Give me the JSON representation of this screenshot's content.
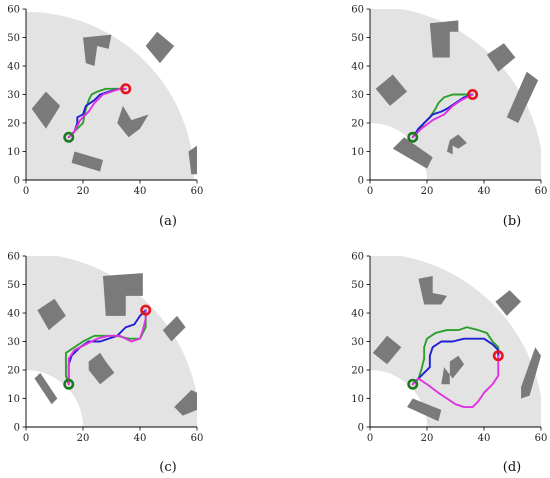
{
  "chart_data": [
    {
      "label": "(a)",
      "type": "line",
      "xlim": [
        0,
        60
      ],
      "ylim": [
        0,
        60
      ],
      "xticks": [
        0,
        20,
        40,
        60
      ],
      "yticks": [
        0,
        10,
        20,
        30,
        40,
        50,
        60
      ],
      "free_region": {
        "center": [
          0,
          0
        ],
        "r_inner": 0,
        "r_outer": 59
      },
      "obstacles": [
        [
          [
            20,
            50
          ],
          [
            30,
            51
          ],
          [
            29,
            46
          ],
          [
            25,
            47
          ],
          [
            24,
            40
          ],
          [
            21,
            41
          ]
        ],
        [
          [
            42,
            47
          ],
          [
            46,
            52
          ],
          [
            52,
            47
          ],
          [
            47,
            41
          ]
        ],
        [
          [
            2,
            25
          ],
          [
            7,
            31
          ],
          [
            12,
            26
          ],
          [
            7,
            18
          ]
        ],
        [
          [
            34,
            26
          ],
          [
            37,
            21
          ],
          [
            43,
            23
          ],
          [
            40,
            18
          ],
          [
            36,
            15
          ],
          [
            32,
            20
          ]
        ],
        [
          [
            16,
            6
          ],
          [
            26,
            3
          ],
          [
            27,
            7
          ],
          [
            17,
            10
          ]
        ],
        [
          [
            57,
            10
          ],
          [
            60,
            12
          ],
          [
            60,
            2
          ],
          [
            58,
            2
          ]
        ]
      ],
      "start": [
        15,
        15
      ],
      "goal": [
        35,
        32
      ],
      "series": [
        {
          "color": "#2ca02c",
          "points": [
            [
              15,
              15
            ],
            [
              18,
              18
            ],
            [
              20,
              20
            ],
            [
              21,
              25
            ],
            [
              22,
              28
            ],
            [
              23,
              30
            ],
            [
              25,
              31
            ],
            [
              28,
              32
            ],
            [
              32,
              32
            ],
            [
              35,
              32
            ]
          ]
        },
        {
          "color": "#1f1fd6",
          "points": [
            [
              15,
              15
            ],
            [
              17,
              17
            ],
            [
              18,
              20
            ],
            [
              18,
              22
            ],
            [
              20,
              23
            ],
            [
              21,
              26
            ],
            [
              24,
              28
            ],
            [
              26,
              30
            ],
            [
              29,
              31
            ],
            [
              33,
              32
            ],
            [
              35,
              32
            ]
          ]
        },
        {
          "color": "#e032e0",
          "points": [
            [
              15,
              15
            ],
            [
              17,
              17
            ],
            [
              19,
              21
            ],
            [
              22,
              24
            ],
            [
              24,
              27
            ],
            [
              27,
              30
            ],
            [
              30,
              31
            ],
            [
              33,
              32
            ],
            [
              35,
              32
            ]
          ]
        }
      ]
    },
    {
      "label": "(b)",
      "type": "line",
      "xlim": [
        0,
        60
      ],
      "ylim": [
        0,
        60
      ],
      "xticks": [
        0,
        20,
        40,
        60
      ],
      "yticks": [
        0,
        10,
        20,
        30,
        40,
        50,
        60
      ],
      "free_region": {
        "center": [
          0,
          0
        ],
        "r_inner": 20,
        "r_outer": 61
      },
      "obstacles": [
        [
          [
            21,
            55
          ],
          [
            31,
            56
          ],
          [
            31,
            52
          ],
          [
            28,
            52
          ],
          [
            28,
            43
          ],
          [
            22,
            43
          ]
        ],
        [
          [
            41,
            44
          ],
          [
            45,
            38
          ],
          [
            51,
            43
          ],
          [
            47,
            48
          ]
        ],
        [
          [
            2,
            32
          ],
          [
            8,
            37
          ],
          [
            13,
            31
          ],
          [
            7,
            26
          ]
        ],
        [
          [
            48,
            22
          ],
          [
            55,
            38
          ],
          [
            59,
            35
          ],
          [
            52,
            20
          ]
        ],
        [
          [
            28,
            14
          ],
          [
            31,
            16
          ],
          [
            34,
            13
          ],
          [
            31,
            11
          ],
          [
            29,
            12
          ],
          [
            29,
            9
          ],
          [
            27,
            10
          ]
        ],
        [
          [
            8,
            11
          ],
          [
            12,
            15
          ],
          [
            22,
            8
          ],
          [
            20,
            4
          ]
        ]
      ],
      "start": [
        15,
        15
      ],
      "goal": [
        36,
        30
      ],
      "series": [
        {
          "color": "#2ca02c",
          "points": [
            [
              15,
              15
            ],
            [
              17,
              17
            ],
            [
              19,
              20
            ],
            [
              21,
              22
            ],
            [
              23,
              25
            ],
            [
              24,
              27
            ],
            [
              26,
              29
            ],
            [
              29,
              30
            ],
            [
              33,
              30
            ],
            [
              36,
              30
            ]
          ]
        },
        {
          "color": "#1f1fd6",
          "points": [
            [
              15,
              15
            ],
            [
              17,
              18
            ],
            [
              20,
              21
            ],
            [
              22,
              23
            ],
            [
              25,
              24
            ],
            [
              27,
              25
            ],
            [
              30,
              27
            ],
            [
              33,
              29
            ],
            [
              36,
              30
            ]
          ]
        },
        {
          "color": "#e032e0",
          "points": [
            [
              15,
              15
            ],
            [
              18,
              18
            ],
            [
              22,
              21
            ],
            [
              26,
              23
            ],
            [
              29,
              26
            ],
            [
              32,
              28
            ],
            [
              36,
              30
            ]
          ]
        }
      ]
    },
    {
      "label": "(c)",
      "type": "line",
      "xlim": [
        0,
        60
      ],
      "ylim": [
        0,
        60
      ],
      "xticks": [
        0,
        20,
        40,
        60
      ],
      "yticks": [
        0,
        10,
        20,
        30,
        40,
        50,
        60
      ],
      "free_region": {
        "center": [
          0,
          0
        ],
        "r_inner": 20,
        "r_outer": 61
      },
      "obstacles": [
        [
          [
            27,
            53
          ],
          [
            41,
            54
          ],
          [
            41,
            46
          ],
          [
            35,
            46
          ],
          [
            35,
            39
          ],
          [
            28,
            39
          ]
        ],
        [
          [
            4,
            41
          ],
          [
            10,
            45
          ],
          [
            14,
            39
          ],
          [
            8,
            34
          ]
        ],
        [
          [
            48,
            34
          ],
          [
            51,
            30
          ],
          [
            56,
            35
          ],
          [
            53,
            39
          ]
        ],
        [
          [
            22,
            20
          ],
          [
            26,
            15
          ],
          [
            31,
            19
          ],
          [
            28,
            23
          ],
          [
            26,
            26
          ],
          [
            22,
            23
          ]
        ],
        [
          [
            3,
            17
          ],
          [
            5,
            19
          ],
          [
            11,
            10
          ],
          [
            9,
            8
          ]
        ],
        [
          [
            52,
            7
          ],
          [
            58,
            13
          ],
          [
            60,
            12
          ],
          [
            60,
            6
          ],
          [
            55,
            4
          ]
        ]
      ],
      "start": [
        15,
        15
      ],
      "goal": [
        42,
        41
      ],
      "series": [
        {
          "color": "#2ca02c",
          "points": [
            [
              15,
              15
            ],
            [
              14,
              18
            ],
            [
              14,
              22
            ],
            [
              14,
              26
            ],
            [
              17,
              28
            ],
            [
              20,
              30
            ],
            [
              24,
              32
            ],
            [
              28,
              32
            ],
            [
              32,
              32
            ],
            [
              36,
              31
            ],
            [
              40,
              31
            ],
            [
              42,
              35
            ],
            [
              42,
              41
            ]
          ]
        },
        {
          "color": "#1f1fd6",
          "points": [
            [
              15,
              15
            ],
            [
              15,
              18
            ],
            [
              15,
              22
            ],
            [
              16,
              25
            ],
            [
              19,
              28
            ],
            [
              22,
              30
            ],
            [
              26,
              30
            ],
            [
              29,
              31
            ],
            [
              32,
              32
            ],
            [
              35,
              35
            ],
            [
              38,
              36
            ],
            [
              40,
              39
            ],
            [
              42,
              41
            ]
          ]
        },
        {
          "color": "#e032e0",
          "points": [
            [
              15,
              15
            ],
            [
              15,
              19
            ],
            [
              15,
              24
            ],
            [
              17,
              27
            ],
            [
              21,
              29
            ],
            [
              25,
              31
            ],
            [
              29,
              32
            ],
            [
              33,
              32
            ],
            [
              37,
              30
            ],
            [
              40,
              31
            ],
            [
              41,
              34
            ],
            [
              42,
              38
            ],
            [
              42,
              41
            ]
          ]
        }
      ]
    },
    {
      "label": "(d)",
      "type": "line",
      "xlim": [
        0,
        60
      ],
      "ylim": [
        0,
        60
      ],
      "xticks": [
        0,
        20,
        40,
        60
      ],
      "yticks": [
        0,
        10,
        20,
        30,
        40,
        50,
        60
      ],
      "free_region": {
        "center": [
          0,
          0
        ],
        "r_inner": 20,
        "r_outer": 61
      },
      "obstacles": [
        [
          [
            17,
            52
          ],
          [
            22,
            53
          ],
          [
            22,
            47
          ],
          [
            27,
            46
          ],
          [
            25,
            43
          ],
          [
            19,
            43
          ]
        ],
        [
          [
            44,
            44
          ],
          [
            49,
            48
          ],
          [
            53,
            44
          ],
          [
            48,
            39
          ]
        ],
        [
          [
            1,
            26
          ],
          [
            6,
            32
          ],
          [
            11,
            28
          ],
          [
            6,
            22
          ]
        ],
        [
          [
            26,
            21
          ],
          [
            29,
            17
          ],
          [
            33,
            22
          ],
          [
            31,
            25
          ],
          [
            28,
            23
          ],
          [
            28,
            15
          ],
          [
            25,
            15
          ]
        ],
        [
          [
            13,
            7
          ],
          [
            15,
            10
          ],
          [
            25,
            6
          ],
          [
            24,
            2
          ]
        ],
        [
          [
            53,
            10
          ],
          [
            56,
            11
          ],
          [
            60,
            25
          ],
          [
            58,
            28
          ],
          [
            53,
            14
          ]
        ]
      ],
      "start": [
        15,
        15
      ],
      "goal": [
        45,
        25
      ],
      "series": [
        {
          "color": "#2ca02c",
          "points": [
            [
              15,
              15
            ],
            [
              17,
              17
            ],
            [
              18,
              20
            ],
            [
              19,
              24
            ],
            [
              19,
              28
            ],
            [
              20,
              31
            ],
            [
              23,
              33
            ],
            [
              27,
              34
            ],
            [
              31,
              34
            ],
            [
              34,
              35
            ],
            [
              38,
              34
            ],
            [
              41,
              33
            ],
            [
              43,
              30
            ],
            [
              45,
              28
            ],
            [
              45,
              25
            ]
          ]
        },
        {
          "color": "#1f1fd6",
          "points": [
            [
              15,
              15
            ],
            [
              17,
              17
            ],
            [
              19,
              19
            ],
            [
              21,
              21
            ],
            [
              21,
              25
            ],
            [
              22,
              28
            ],
            [
              25,
              30
            ],
            [
              29,
              30
            ],
            [
              33,
              31
            ],
            [
              37,
              31
            ],
            [
              40,
              31
            ],
            [
              43,
              29
            ],
            [
              45,
              27
            ],
            [
              45,
              25
            ]
          ]
        },
        {
          "color": "#e032e0",
          "points": [
            [
              15,
              15
            ],
            [
              17,
              17
            ],
            [
              20,
              15
            ],
            [
              24,
              12
            ],
            [
              27,
              10
            ],
            [
              30,
              8
            ],
            [
              33,
              7
            ],
            [
              36,
              7
            ],
            [
              38,
              9
            ],
            [
              40,
              12
            ],
            [
              43,
              15
            ],
            [
              45,
              18
            ],
            [
              45,
              22
            ],
            [
              45,
              25
            ]
          ]
        }
      ]
    }
  ]
}
